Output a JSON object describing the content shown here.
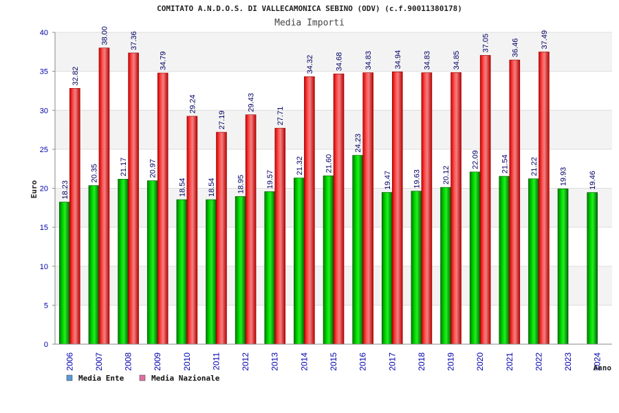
{
  "chart_data": {
    "type": "bar",
    "title": "COMITATO A.N.D.O.S. DI VALLECAMONICA SEBINO (ODV) (c.f.90011380178)",
    "subtitle": "Media Importi",
    "xlabel": "Anno",
    "ylabel": "Euro",
    "ylim": [
      0,
      40
    ],
    "yticks": [
      "0",
      "5",
      "10",
      "15",
      "20",
      "25",
      "30",
      "35",
      "40"
    ],
    "grid": true,
    "legend_position": "bottom-left",
    "categories": [
      "2006",
      "2007",
      "2008",
      "2009",
      "2010",
      "2011",
      "2012",
      "2013",
      "2014",
      "2015",
      "2016",
      "2017",
      "2018",
      "2019",
      "2020",
      "2021",
      "2022",
      "2023",
      "2024"
    ],
    "series": [
      {
        "name": "Media Ente",
        "color": "#00bb00",
        "legend_color": "#5b9bd5",
        "values": [
          18.23,
          20.35,
          21.17,
          20.97,
          18.54,
          18.54,
          18.95,
          19.57,
          21.32,
          21.6,
          24.23,
          19.47,
          19.63,
          20.12,
          22.09,
          21.54,
          21.22,
          19.93,
          19.46
        ],
        "labels": [
          "18.23",
          "20.35",
          "21.17",
          "20.97",
          "18.54",
          "18.54",
          "18.95",
          "19.57",
          "21.32",
          "21.60",
          "24.23",
          "19.47",
          "19.63",
          "20.12",
          "22.09",
          "21.54",
          "21.22",
          "19.93",
          "19.46"
        ]
      },
      {
        "name": "Media Nazionale",
        "color": "#ee2222",
        "legend_color": "#e070a0",
        "values": [
          32.82,
          38.0,
          37.36,
          34.79,
          29.24,
          27.19,
          29.43,
          27.71,
          34.32,
          34.68,
          34.83,
          34.94,
          34.83,
          34.85,
          37.05,
          36.46,
          37.49,
          null,
          null
        ],
        "labels": [
          "32.82",
          "38.00",
          "37.36",
          "34.79",
          "29.24",
          "27.19",
          "29.43",
          "27.71",
          "34.32",
          "34.68",
          "34.83",
          "34.94",
          "34.83",
          "34.85",
          "37.05",
          "36.46",
          "37.49",
          "",
          ""
        ]
      }
    ]
  }
}
